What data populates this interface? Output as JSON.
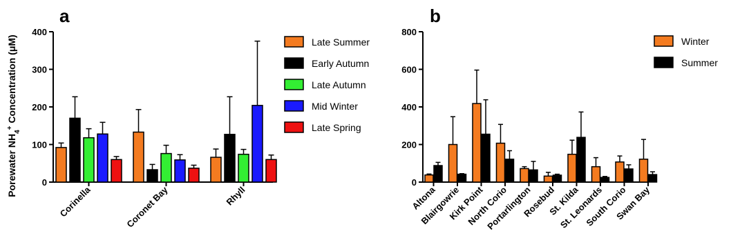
{
  "figure": {
    "ylabel_prefix": "Porewater NH",
    "ylabel_sub": "4",
    "ylabel_sup": "+",
    "ylabel_suffix": " Concentration (μM)"
  },
  "chart_data": [
    {
      "panel": "a",
      "type": "bar",
      "ylim": [
        0,
        400
      ],
      "yticks": [
        "0",
        "100",
        "200",
        "300",
        "400"
      ],
      "categories": [
        "Corinella",
        "Coronet Bay",
        "Rhyll"
      ],
      "legend_position": "right",
      "series": [
        {
          "name": "Late Summer",
          "color": "#f47b20",
          "values": [
            92,
            133,
            66
          ],
          "errors": [
            12,
            60,
            22
          ]
        },
        {
          "name": "Early Autumn",
          "color": "#000000",
          "values": [
            170,
            33,
            127
          ],
          "errors": [
            57,
            14,
            100
          ]
        },
        {
          "name": "Late Autumn",
          "color": "#33ee33",
          "values": [
            118,
            76,
            74
          ],
          "errors": [
            24,
            22,
            13
          ]
        },
        {
          "name": "Mid Winter",
          "color": "#1a1aff",
          "values": [
            128,
            59,
            204
          ],
          "errors": [
            31,
            14,
            171
          ]
        },
        {
          "name": "Late Spring",
          "color": "#ee1111",
          "values": [
            60,
            37,
            60
          ],
          "errors": [
            8,
            8,
            12
          ]
        }
      ]
    },
    {
      "panel": "b",
      "type": "bar",
      "ylim": [
        0,
        800
      ],
      "yticks": [
        "0",
        "200",
        "400",
        "600",
        "800"
      ],
      "categories": [
        "Altona",
        "Blairgowrie",
        "Kirk Point",
        "North Corio",
        "Portarlington",
        "Rosebud",
        "St. Kilda",
        "St. Leonards",
        "South Corio",
        "Swan Bay"
      ],
      "legend_position": "right",
      "series": [
        {
          "name": "Winter",
          "color": "#f47b20",
          "values": [
            38,
            200,
            418,
            207,
            72,
            32,
            148,
            82,
            107,
            122
          ],
          "errors": [
            5,
            148,
            178,
            100,
            10,
            20,
            75,
            48,
            32,
            105
          ]
        },
        {
          "name": "Summer",
          "color": "#000000",
          "values": [
            88,
            42,
            255,
            122,
            65,
            37,
            238,
            25,
            70,
            40
          ],
          "errors": [
            17,
            3,
            183,
            45,
            45,
            5,
            135,
            5,
            22,
            15
          ]
        }
      ]
    }
  ]
}
